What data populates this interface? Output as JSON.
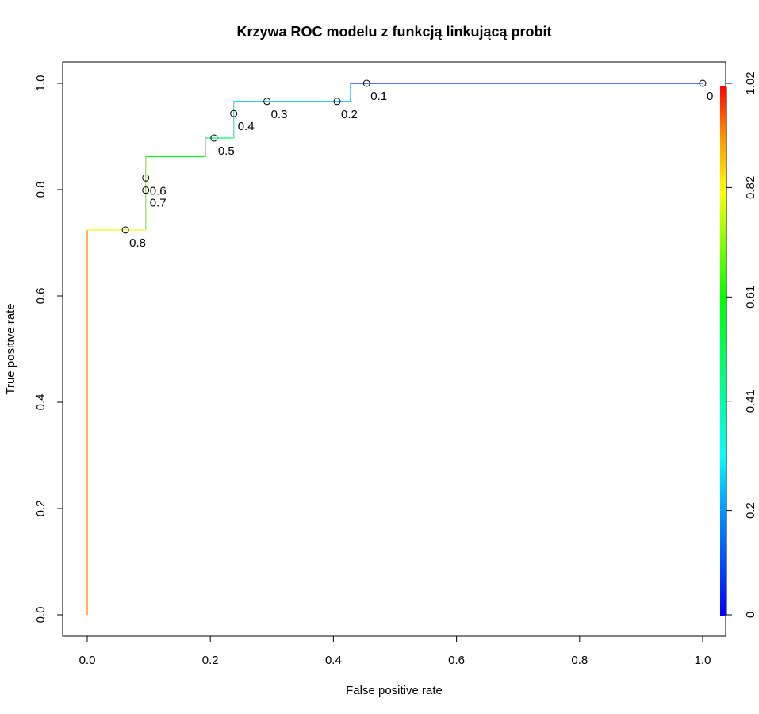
{
  "chart_data": {
    "type": "line",
    "title": "Krzywa ROC modelu z funkcją linkującą probit",
    "xlabel": "False positive rate",
    "ylabel": "True positive rate",
    "xlim": [
      0,
      1
    ],
    "ylim": [
      0,
      1
    ],
    "x_ticks": [
      "0.0",
      "0.2",
      "0.4",
      "0.6",
      "0.8",
      "1.0"
    ],
    "y_ticks": [
      "0.0",
      "0.2",
      "0.4",
      "0.6",
      "0.8",
      "1.0"
    ],
    "grid": false,
    "series": [
      {
        "x": [
          0.0,
          0.0,
          0.095,
          0.095,
          0.192,
          0.192,
          0.238,
          0.238,
          0.428,
          0.428,
          1.0
        ],
        "y": [
          0.0,
          0.724,
          0.724,
          0.862,
          0.862,
          0.897,
          0.897,
          0.966,
          0.966,
          1.0,
          1.0
        ],
        "cutoff": [
          1.02,
          0.85,
          0.75,
          0.65,
          0.55,
          0.5,
          0.45,
          0.3,
          0.2,
          0.1,
          0.0
        ]
      }
    ],
    "cutoff_labels": [
      {
        "label": "0.8",
        "x": 0.062,
        "y": 0.724
      },
      {
        "label": "0.7",
        "x": 0.095,
        "y": 0.799
      },
      {
        "label": "0.6",
        "x": 0.095,
        "y": 0.822
      },
      {
        "label": "0.5",
        "x": 0.206,
        "y": 0.897
      },
      {
        "label": "0.4",
        "x": 0.238,
        "y": 0.943
      },
      {
        "label": "0.3",
        "x": 0.292,
        "y": 0.966
      },
      {
        "label": "0.2",
        "x": 0.406,
        "y": 0.966
      },
      {
        "label": "0.1",
        "x": 0.454,
        "y": 1.0
      },
      {
        "label": "0",
        "x": 1.0,
        "y": 1.0
      }
    ],
    "colorbar": {
      "ticks": [
        "0",
        "0.2",
        "0.41",
        "0.61",
        "0.82",
        "1.02"
      ],
      "range": [
        0,
        1.02
      ]
    }
  }
}
